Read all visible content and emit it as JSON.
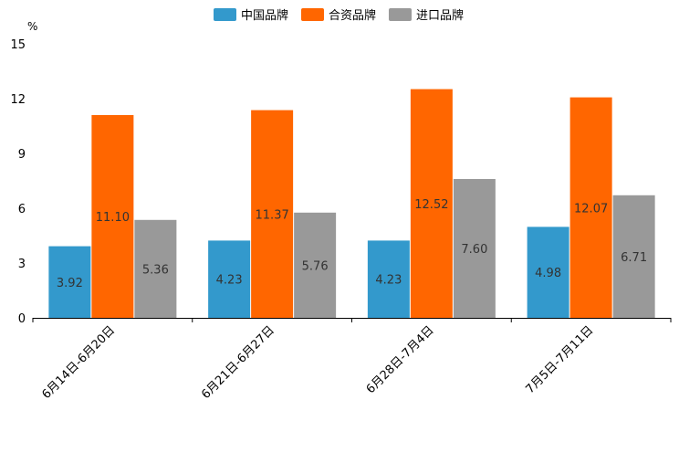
{
  "chart_data": {
    "type": "bar",
    "title": "",
    "xlabel": "",
    "ylabel": "%",
    "ylim": [
      0,
      15
    ],
    "yticks": [
      0,
      3,
      6,
      9,
      12,
      15
    ],
    "grid": false,
    "legend_position": "top-center",
    "categories": [
      "6月14日-6月20日",
      "6月21日-6月27日",
      "6月28日-7月4日",
      "7月5日-7月11日"
    ],
    "series": [
      {
        "name": "中国品牌",
        "color": "#3399cc",
        "values": [
          3.92,
          4.23,
          4.23,
          4.98
        ],
        "labels": [
          "3.92",
          "4.23",
          "4.23",
          "4.98"
        ]
      },
      {
        "name": "合资品牌",
        "color": "#ff6600",
        "values": [
          11.1,
          11.37,
          12.52,
          12.07
        ],
        "labels": [
          "11.10",
          "11.37",
          "12.52",
          "12.07"
        ]
      },
      {
        "name": "进口品牌",
        "color": "#999999",
        "values": [
          5.36,
          5.76,
          7.6,
          6.71
        ],
        "labels": [
          "5.36",
          "5.76",
          "7.60",
          "6.71"
        ]
      }
    ]
  }
}
